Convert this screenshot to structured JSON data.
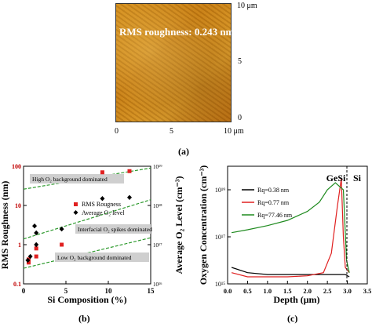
{
  "panel_a": {
    "overlay_text": "RMS roughness: 0.243 nm",
    "x_ticks": [
      "0",
      "5",
      "10 μm"
    ],
    "y_ticks": [
      "10 μm",
      "5",
      "0"
    ],
    "caption": "(a)"
  },
  "panel_b": {
    "caption": "(b)",
    "annotations": [
      "High O₂ background dominated",
      "Interfacial O₂ spikes dominated",
      "Low O₂ background dominated"
    ]
  },
  "panel_c": {
    "caption": "(c)",
    "region_labels": [
      "GeSi",
      "Si"
    ]
  },
  "chart_data": [
    {
      "type": "scatter",
      "xlabel": "Si Composition (%)",
      "ylabel": "RMS Roughness (nm)",
      "y2label": "Average O₂ Level (cm⁻³)",
      "xlim": [
        0,
        15
      ],
      "ylim": [
        0.1,
        100
      ],
      "y2lim": [
        1e+16,
        1e+19
      ],
      "x_ticks": [
        "0",
        "5",
        "10",
        "15"
      ],
      "y_ticks": [
        "0.1",
        "1",
        "10",
        "100"
      ],
      "y2_ticks": [
        "10¹⁶",
        "10¹⁷",
        "10¹⁸",
        "10¹⁹"
      ],
      "series": [
        {
          "name": "RMS Rougness",
          "color": "#e02020",
          "marker": "square",
          "x": [
            0.6,
            0.6,
            1.5,
            1.5,
            4.5,
            9.3,
            12.5
          ],
          "y": [
            0.35,
            0.42,
            0.5,
            0.8,
            1.0,
            70,
            75
          ]
        },
        {
          "name": "Average O₂ level",
          "color": "#000000",
          "marker": "diamond",
          "x": [
            0.5,
            0.8,
            1.3,
            1.5,
            1.5,
            4.5,
            9.3,
            12.5
          ],
          "y": [
            4e+16,
            5e+16,
            3e+17,
            1e+17,
            2e+17,
            2.5e+17,
            1.5e+18,
            1.6e+18
          ]
        }
      ]
    },
    {
      "type": "line",
      "xlabel": "Depth (μm)",
      "ylabel": "Oxygen Concentration (cm⁻³)",
      "xlim": [
        0,
        3.5
      ],
      "ylim": [
        1000000000000000.0,
        1e+20
      ],
      "x_ticks": [
        "0.0",
        "0.5",
        "1.0",
        "1.5",
        "2.0",
        "2.5",
        "3.0",
        "3.5"
      ],
      "y_ticks": [
        "10¹⁵",
        "10¹⁷",
        "10¹⁹"
      ],
      "series": [
        {
          "name": "Rq=0.38 nm",
          "color": "#000000",
          "x": [
            0.1,
            0.5,
            1.0,
            1.5,
            2.0,
            2.5,
            2.8,
            2.95,
            3.05
          ],
          "y": [
            5000000000000000.0,
            3000000000000000.0,
            2500000000000000.0,
            2500000000000000.0,
            2500000000000000.0,
            2500000000000000.0,
            2500000000000000.0,
            2500000000000000.0,
            2000000000000000.0
          ]
        },
        {
          "name": "Rq=0.77 nm",
          "color": "#e02020",
          "x": [
            0.1,
            0.5,
            1.0,
            1.5,
            2.0,
            2.4,
            2.6,
            2.75,
            2.85,
            2.9,
            2.95,
            3.05
          ],
          "y": [
            3000000000000000.0,
            2000000000000000.0,
            2000000000000000.0,
            2000000000000000.0,
            2200000000000000.0,
            3000000000000000.0,
            2e+16,
            2e+18,
            3e+19,
            1e+17,
            5000000000000000.0,
            3000000000000000.0
          ]
        },
        {
          "name": "Rq=77.46 nm",
          "color": "#1e8a1e",
          "x": [
            0.1,
            0.5,
            1.0,
            1.5,
            2.0,
            2.3,
            2.5,
            2.7,
            2.9,
            2.98,
            3.05
          ],
          "y": [
            1.5e+17,
            2e+17,
            3e+17,
            5e+17,
            1.2e+18,
            3e+18,
            1e+19,
            2e+19,
            1e+19,
            1e+16,
            3000000000000000.0
          ]
        }
      ]
    }
  ]
}
